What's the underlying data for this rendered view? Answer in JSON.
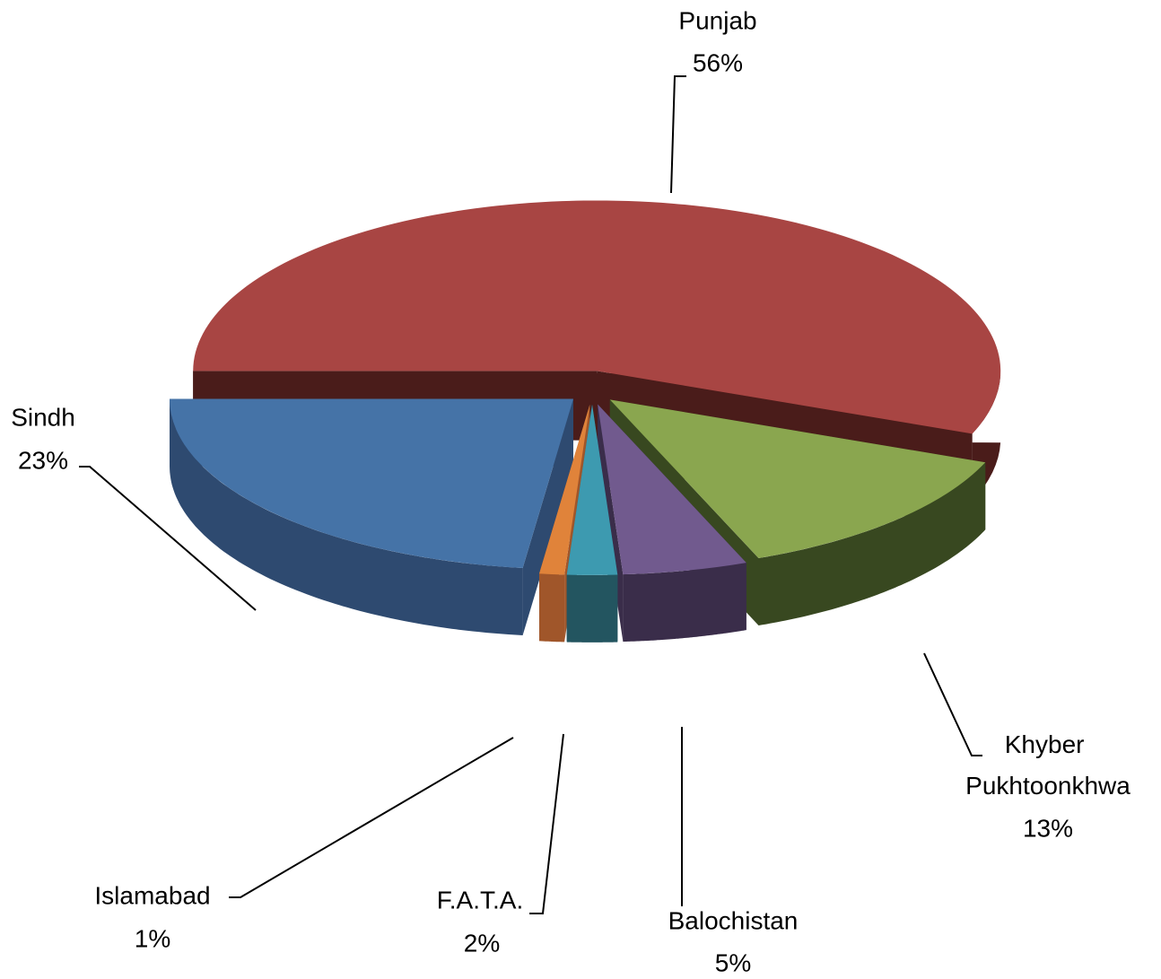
{
  "chart_data": {
    "type": "pie3d",
    "categories": [
      "Punjab",
      "Khyber Pukhtoonkhwa",
      "Balochistan",
      "F.A.T.A.",
      "Islamabad",
      "Sindh"
    ],
    "values": [
      56,
      13,
      5,
      2,
      1,
      23
    ],
    "value_labels": [
      "56%",
      "13%",
      "5%",
      "2%",
      "1%",
      "23%"
    ],
    "colors": [
      "#a84543",
      "#8aa64f",
      "#715a8e",
      "#3d9ab0",
      "#e0833a",
      "#4573a7"
    ],
    "side_colors": [
      "#4a1c1a",
      "#384820",
      "#3a2d4a",
      "#235560",
      "#a0562a",
      "#2e4a70"
    ]
  }
}
